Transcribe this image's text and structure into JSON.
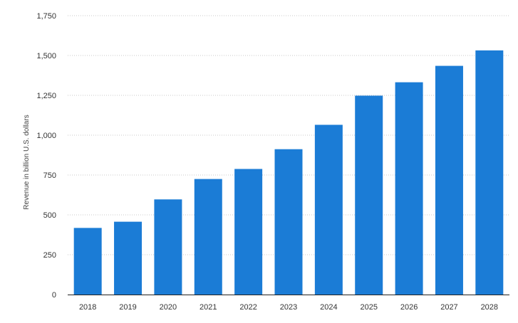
{
  "chart_data": {
    "type": "bar",
    "title": "",
    "xlabel": "",
    "ylabel": "Revenue in billion U.S. dollars",
    "categories": [
      "2018",
      "2019",
      "2020",
      "2021",
      "2022",
      "2023",
      "2024",
      "2025",
      "2026",
      "2027",
      "2028"
    ],
    "values": [
      418,
      457,
      597,
      725,
      788,
      912,
      1065,
      1248,
      1332,
      1435,
      1532
    ],
    "ylim": [
      0,
      1750
    ],
    "yticks": [
      0,
      250,
      500,
      750,
      1000,
      1250,
      1500,
      1750
    ],
    "ytick_labels": [
      "0",
      "250",
      "500",
      "750",
      "1,000",
      "1,250",
      "1,500",
      "1,750"
    ],
    "grid": true,
    "bar_color": "#1b7cd6"
  }
}
